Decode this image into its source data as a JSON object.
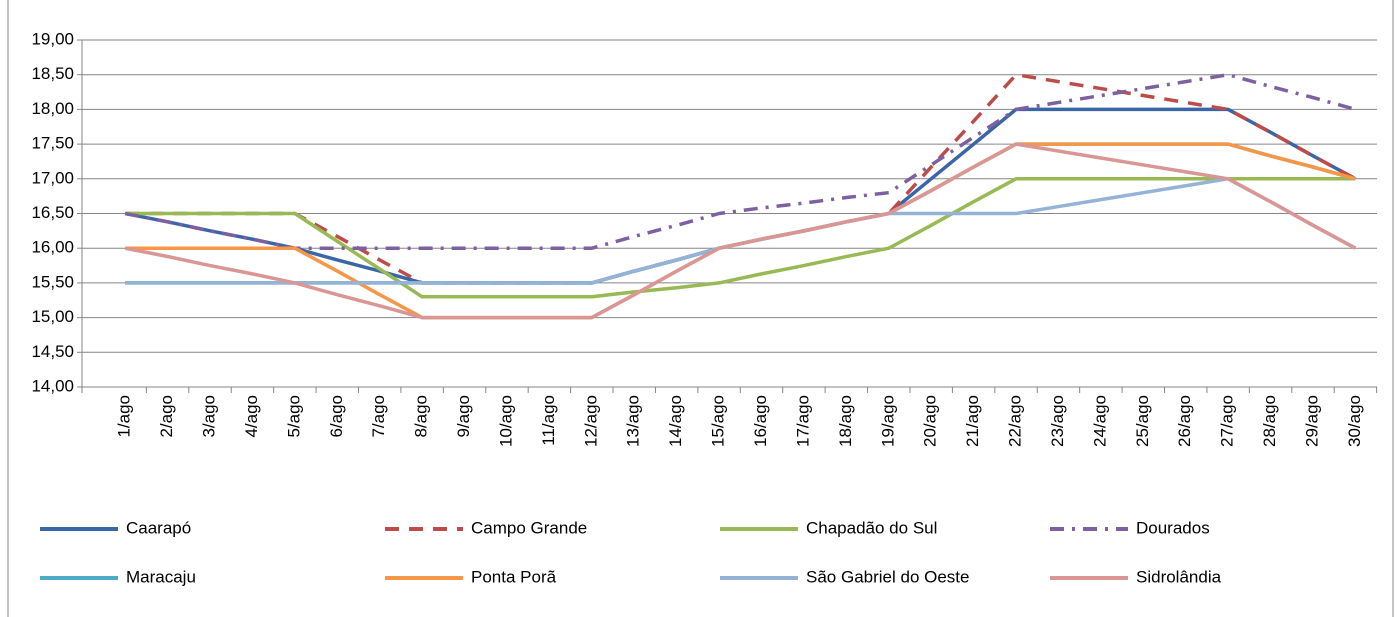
{
  "chart_data": {
    "type": "line",
    "categories": [
      "1/ago",
      "2/ago",
      "3/ago",
      "4/ago",
      "5/ago",
      "6/ago",
      "7/ago",
      "8/ago",
      "9/ago",
      "10/ago",
      "11/ago",
      "12/ago",
      "13/ago",
      "14/ago",
      "15/ago",
      "16/ago",
      "17/ago",
      "18/ago",
      "19/ago",
      "20/ago",
      "21/ago",
      "22/ago",
      "23/ago",
      "24/ago",
      "25/ago",
      "26/ago",
      "27/ago",
      "28/ago",
      "29/ago",
      "30/ago"
    ],
    "ylim": [
      14,
      19
    ],
    "yticks": [
      {
        "value": 14,
        "label": "14,00"
      },
      {
        "value": 14.5,
        "label": "14,50"
      },
      {
        "value": 15,
        "label": "15,00"
      },
      {
        "value": 15.5,
        "label": "15,50"
      },
      {
        "value": 16,
        "label": "16,00"
      },
      {
        "value": 16.5,
        "label": "16,50"
      },
      {
        "value": 17,
        "label": "17,00"
      },
      {
        "value": 17.5,
        "label": "17,50"
      },
      {
        "value": 18,
        "label": "18,00"
      },
      {
        "value": 18.5,
        "label": "18,50"
      },
      {
        "value": 19,
        "label": "19,00"
      }
    ],
    "grid": true,
    "legend": "bottom",
    "series": [
      {
        "name": "Caarapó",
        "color": "#3A66A8",
        "dash": "solid",
        "values": [
          16.5,
          16.38,
          16.25,
          16.13,
          16.0,
          15.83,
          15.67,
          15.5,
          15.5,
          15.5,
          15.5,
          15.5,
          15.67,
          15.83,
          16.0,
          16.13,
          16.25,
          16.38,
          16.5,
          17.0,
          17.5,
          18.0,
          18.0,
          18.0,
          18.0,
          18.0,
          18.0,
          17.67,
          17.33,
          17.0
        ]
      },
      {
        "name": "Campo Grande",
        "color": "#BE4B48",
        "dash": "dash",
        "values": [
          16.5,
          16.5,
          16.5,
          16.5,
          16.5,
          16.17,
          15.83,
          15.5,
          15.5,
          15.5,
          15.5,
          15.5,
          15.67,
          15.83,
          16.0,
          16.13,
          16.25,
          16.38,
          16.5,
          17.17,
          17.83,
          18.5,
          18.4,
          18.3,
          18.2,
          18.1,
          18.0,
          17.67,
          17.33,
          17.0
        ]
      },
      {
        "name": "Chapadão do Sul",
        "color": "#98B954",
        "dash": "solid",
        "values": [
          16.5,
          16.5,
          16.5,
          16.5,
          16.5,
          16.1,
          15.7,
          15.3,
          15.3,
          15.3,
          15.3,
          15.3,
          15.37,
          15.43,
          15.5,
          15.63,
          15.75,
          15.88,
          16.0,
          16.33,
          16.67,
          17.0,
          17.0,
          17.0,
          17.0,
          17.0,
          17.0,
          17.0,
          17.0,
          17.0
        ]
      },
      {
        "name": "Dourados",
        "color": "#7D60A0",
        "dash": "dashdot",
        "values": [
          16.5,
          16.38,
          16.25,
          16.13,
          16.0,
          16.0,
          16.0,
          16.0,
          16.0,
          16.0,
          16.0,
          16.0,
          16.17,
          16.33,
          16.5,
          16.58,
          16.65,
          16.73,
          16.8,
          17.2,
          17.6,
          18.0,
          18.1,
          18.2,
          18.3,
          18.4,
          18.5,
          18.33,
          18.17,
          18.0
        ]
      },
      {
        "name": "Maracaju",
        "color": "#4BACC6",
        "dash": "solid",
        "values": [
          15.5,
          15.5,
          15.5,
          15.5,
          15.5,
          15.5,
          15.5,
          15.5,
          15.5,
          15.5,
          15.5,
          15.5,
          15.67,
          15.83,
          16.0,
          16.13,
          16.25,
          16.38,
          16.5,
          16.83,
          17.17,
          17.5,
          17.5,
          17.5,
          17.5,
          17.5,
          17.5,
          17.33,
          17.17,
          17.0
        ]
      },
      {
        "name": "Ponta Porã",
        "color": "#F79646",
        "dash": "solid",
        "values": [
          16.0,
          16.0,
          16.0,
          16.0,
          16.0,
          15.67,
          15.33,
          15.0,
          15.0,
          15.0,
          15.0,
          15.0,
          15.33,
          15.67,
          16.0,
          16.13,
          16.25,
          16.38,
          16.5,
          16.83,
          17.17,
          17.5,
          17.5,
          17.5,
          17.5,
          17.5,
          17.5,
          17.33,
          17.17,
          17.0
        ]
      },
      {
        "name": "São Gabriel do Oeste",
        "color": "#95B3D7",
        "dash": "solid",
        "values": [
          15.5,
          15.5,
          15.5,
          15.5,
          15.5,
          15.5,
          15.5,
          15.5,
          15.5,
          15.5,
          15.5,
          15.5,
          15.67,
          15.83,
          16.0,
          16.13,
          16.25,
          16.38,
          16.5,
          16.5,
          16.5,
          16.5,
          16.6,
          16.7,
          16.8,
          16.9,
          17.0,
          16.67,
          16.33,
          16.0
        ]
      },
      {
        "name": "Sidrolândia",
        "color": "#D99694",
        "dash": "solid",
        "values": [
          16.0,
          15.88,
          15.75,
          15.63,
          15.5,
          15.33,
          15.17,
          15.0,
          15.0,
          15.0,
          15.0,
          15.0,
          15.33,
          15.67,
          16.0,
          16.13,
          16.25,
          16.38,
          16.5,
          16.83,
          17.17,
          17.5,
          17.4,
          17.3,
          17.2,
          17.1,
          17.0,
          16.67,
          16.33,
          16.0
        ]
      }
    ]
  }
}
